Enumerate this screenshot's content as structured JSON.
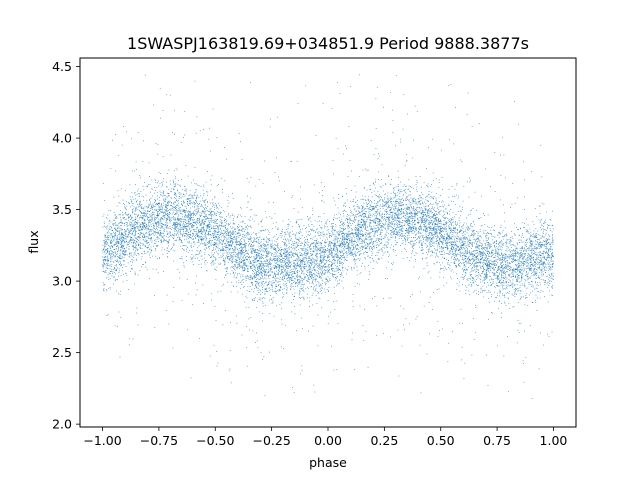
{
  "chart_data": {
    "type": "scatter",
    "title": "1SWASPJ163819.69+034851.9 Period 9888.3877s",
    "xlabel": "phase",
    "ylabel": "flux",
    "xlim": [
      -1.1,
      1.1
    ],
    "ylim": [
      1.98,
      4.56
    ],
    "xticks": [
      -1.0,
      -0.75,
      -0.5,
      -0.25,
      0.0,
      0.25,
      0.5,
      0.75,
      1.0
    ],
    "xtick_labels": [
      "−1.00",
      "−0.75",
      "−0.50",
      "−0.25",
      "0.00",
      "0.25",
      "0.50",
      "0.75",
      "1.00"
    ],
    "yticks": [
      2.0,
      2.5,
      3.0,
      3.5,
      4.0,
      4.5
    ],
    "ytick_labels": [
      "2.0",
      "2.5",
      "3.0",
      "3.5",
      "4.0",
      "4.5"
    ],
    "grid": false,
    "marker_color": "#1f77b4",
    "series": [
      {
        "x": [
          -1.0,
          -0.95,
          -0.9,
          -0.85,
          -0.8,
          -0.75,
          -0.7,
          -0.65,
          -0.6,
          -0.55,
          -0.5,
          -0.45,
          -0.4,
          -0.35,
          -0.3,
          -0.25,
          -0.2,
          -0.15,
          -0.1,
          -0.05,
          0.0,
          0.05,
          0.1,
          0.15,
          0.2,
          0.25,
          0.3,
          0.35,
          0.4,
          0.45,
          0.5,
          0.55,
          0.6,
          0.65,
          0.7,
          0.75,
          0.8,
          0.85,
          0.9,
          0.95,
          1.0
        ],
        "y": [
          3.18,
          3.25,
          3.3,
          3.36,
          3.4,
          3.43,
          3.45,
          3.44,
          3.42,
          3.38,
          3.33,
          3.28,
          3.22,
          3.17,
          3.14,
          3.12,
          3.12,
          3.13,
          3.14,
          3.16,
          3.18,
          3.25,
          3.3,
          3.36,
          3.4,
          3.43,
          3.45,
          3.44,
          3.42,
          3.38,
          3.33,
          3.28,
          3.22,
          3.17,
          3.14,
          3.12,
          3.12,
          3.13,
          3.14,
          3.16,
          3.18
        ]
      }
    ]
  }
}
